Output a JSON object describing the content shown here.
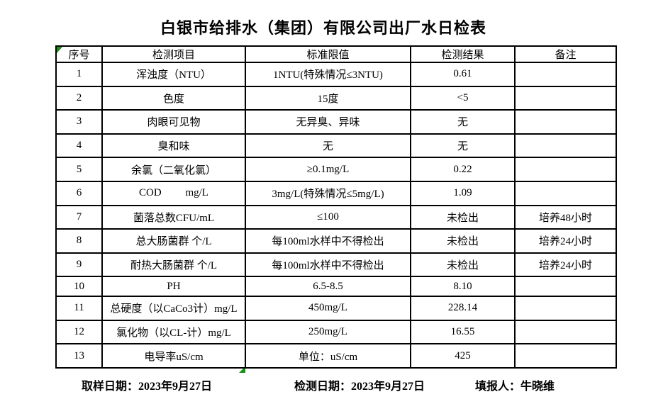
{
  "title": "白银市给排水（集团）有限公司出厂水日检表",
  "table": {
    "headers": [
      "序号",
      "检测项目",
      "标准限值",
      "检测结果",
      "备注"
    ],
    "rows": [
      [
        "1",
        "浑浊度（NTU）",
        "1NTU(特殊情况≤3NTU)",
        "0.61",
        ""
      ],
      [
        "2",
        "色度",
        "15度",
        "<5",
        ""
      ],
      [
        "3",
        "肉眼可见物",
        "无异臭、异味",
        "无",
        ""
      ],
      [
        "4",
        "臭和味",
        "无",
        "无",
        ""
      ],
      [
        "5",
        "余氯（二氧化氯）",
        "≥0.1mg/L",
        "0.22",
        ""
      ],
      [
        "6",
        "COD         mg/L",
        "3mg/L(特殊情况≤5mg/L)",
        "1.09",
        ""
      ],
      [
        "7",
        "菌落总数CFU/mL",
        "≤100",
        "未检出",
        "培养48小时"
      ],
      [
        "8",
        "总大肠菌群 个/L",
        "每100ml水样中不得检出",
        "未检出",
        "培养24小时"
      ],
      [
        "9",
        "耐热大肠菌群 个/L",
        "每100ml水样中不得检出",
        "未检出",
        "培养24小时"
      ],
      [
        "10",
        "PH",
        "6.5-8.5",
        "8.10",
        ""
      ],
      [
        "11",
        "总硬度（以CaCo3计）mg/L",
        "450mg/L",
        "228.14",
        ""
      ],
      [
        "12",
        "氯化物（以CL-计）mg/L",
        "250mg/L",
        "16.55",
        ""
      ],
      [
        "13",
        "电导率uS/cm",
        "单位：uS/cm",
        "425",
        ""
      ]
    ]
  },
  "footer": {
    "sampling_date": "取样日期：2023年9月27日",
    "test_date": "检测日期：2023年9月27日",
    "reporter": "填报人：牛晓维"
  },
  "colors": {
    "accent_green": "#169016",
    "border": "#000000",
    "background": "#ffffff",
    "text": "#000000"
  }
}
